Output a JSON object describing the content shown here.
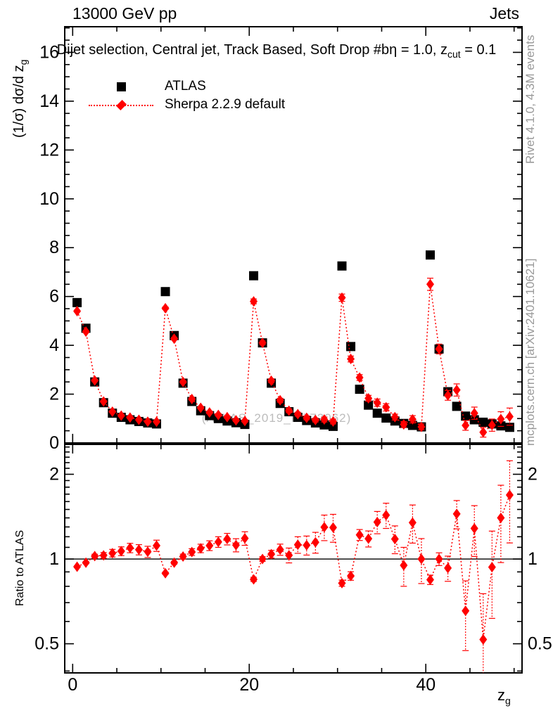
{
  "header": {
    "left": "13000 GeV pp",
    "right": "Jets"
  },
  "plot_title": {
    "text": "Dijet selection, Central jet, Track Based, Soft Drop #bη = 1.0, z",
    "sub": "cut",
    "tail": " = 0.1"
  },
  "axes": {
    "main_y_label_pre": "(1/σ) dσ/d z",
    "main_y_label_sub": "g",
    "x_label_base": "z",
    "x_label_sub": "g",
    "ratio_y_label": "Ratio to ATLAS"
  },
  "legend": {
    "items": [
      {
        "label": "ATLAS",
        "marker": "square",
        "color": "#000000"
      },
      {
        "label": "Sherpa 2.2.9 default",
        "marker": "diamond",
        "color": "#ff0000",
        "line": "dotted"
      }
    ]
  },
  "side_notes": {
    "top_right": "Rivet 4.1.0,  4.3M events",
    "bottom_right": "mcplots.cern.ch [arXiv:2401.10621]"
  },
  "watermark": "(ATLAS_2019_I1772062)",
  "colors": {
    "accent": "#ff0000",
    "data": "#000000",
    "note_gray": "#999999",
    "watermark_gray": "#bcbcbc"
  },
  "chart_data": {
    "type": "scatter",
    "title": "Dijet selection, Central jet, Track Based, Soft Drop #bη = 1.0, z_cut = 0.1",
    "xlabel": "z_g",
    "ylabel": "(1/σ) dσ/d z_g",
    "ratio_label": "Ratio to ATLAS",
    "x": [
      0.5,
      1.5,
      2.5,
      3.5,
      4.5,
      5.5,
      6.5,
      7.5,
      8.5,
      9.5,
      10.5,
      11.5,
      12.5,
      13.5,
      14.5,
      15.5,
      16.5,
      17.5,
      18.5,
      19.5,
      20.5,
      21.5,
      22.5,
      23.5,
      24.5,
      25.5,
      26.5,
      27.5,
      28.5,
      29.5,
      30.5,
      31.5,
      32.5,
      33.5,
      34.5,
      35.5,
      36.5,
      37.5,
      38.5,
      39.5,
      40.5,
      41.5,
      42.5,
      43.5,
      44.5,
      45.5,
      46.5,
      47.5,
      48.5,
      49.5
    ],
    "series": [
      {
        "name": "ATLAS",
        "marker": "square",
        "color": "#000000",
        "values": [
          5.75,
          4.7,
          2.5,
          1.65,
          1.22,
          1.05,
          0.95,
          0.88,
          0.82,
          0.78,
          6.2,
          4.4,
          2.45,
          1.7,
          1.32,
          1.12,
          1.0,
          0.9,
          0.83,
          0.76,
          6.85,
          4.1,
          2.45,
          1.62,
          1.28,
          1.05,
          0.92,
          0.82,
          0.74,
          0.68,
          7.25,
          3.95,
          2.2,
          1.55,
          1.22,
          1.02,
          0.9,
          0.8,
          0.72,
          0.66,
          7.7,
          3.85,
          2.1,
          1.5,
          1.1,
          0.95,
          0.85,
          0.78,
          0.7,
          0.64
        ]
      },
      {
        "name": "Sherpa 2.2.9 default",
        "marker": "diamond",
        "color": "#ff0000",
        "line": "dotted",
        "values": [
          5.4,
          4.56,
          2.56,
          1.7,
          1.28,
          1.12,
          1.04,
          0.95,
          0.87,
          0.87,
          5.52,
          4.27,
          2.5,
          1.8,
          1.44,
          1.25,
          1.15,
          1.06,
          0.93,
          0.9,
          5.8,
          4.1,
          2.55,
          1.75,
          1.32,
          1.18,
          1.03,
          0.94,
          0.96,
          0.88,
          5.95,
          3.44,
          2.68,
          1.83,
          1.65,
          1.46,
          1.06,
          0.76,
          0.97,
          0.66,
          6.5,
          3.85,
          1.95,
          2.17,
          0.72,
          1.22,
          0.44,
          0.73,
          0.98,
          1.08
        ],
        "errors": [
          0.04,
          0.04,
          0.04,
          0.04,
          0.04,
          0.04,
          0.04,
          0.04,
          0.04,
          0.04,
          0.05,
          0.05,
          0.05,
          0.05,
          0.05,
          0.05,
          0.05,
          0.05,
          0.05,
          0.05,
          0.1,
          0.08,
          0.08,
          0.08,
          0.08,
          0.08,
          0.08,
          0.08,
          0.1,
          0.1,
          0.15,
          0.12,
          0.12,
          0.12,
          0.15,
          0.15,
          0.12,
          0.12,
          0.15,
          0.12,
          0.25,
          0.2,
          0.2,
          0.25,
          0.2,
          0.25,
          0.2,
          0.25,
          0.3,
          0.35
        ]
      }
    ],
    "main_axis": {
      "ylim": [
        0,
        17.05
      ],
      "ytick_major": [
        0,
        2,
        4,
        6,
        8,
        10,
        12,
        14,
        16
      ],
      "ytick_minor_step": 0.5,
      "xlim": [
        -0.9,
        50.9
      ],
      "xtick_major": [
        0,
        20,
        40
      ],
      "xtick_minor_step": 5,
      "grid": false
    },
    "ratio_axis": {
      "scale": "log",
      "ylim": [
        0.394,
        2.554
      ],
      "ytick_values": [
        0.5,
        1,
        2
      ],
      "ytick_labels": [
        "0.5",
        "1",
        "2"
      ],
      "reference_line": 1
    },
    "legend_position": "top-left"
  }
}
